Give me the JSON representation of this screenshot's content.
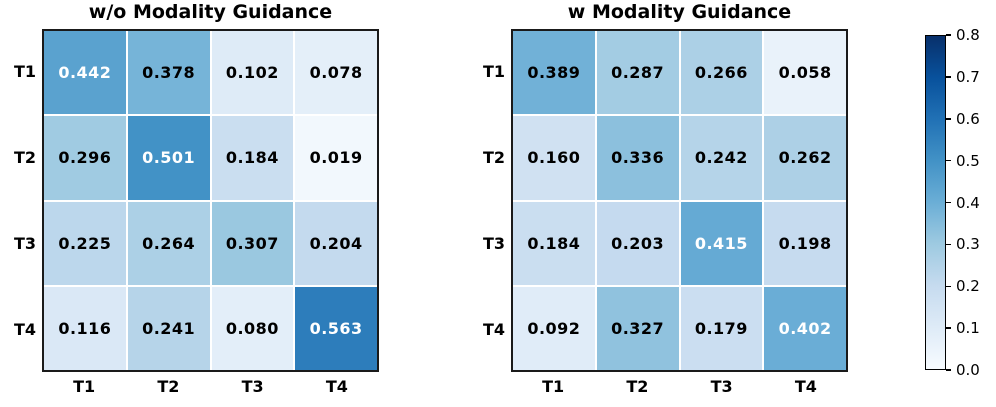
{
  "figure": {
    "background": "#ffffff",
    "border_color": "#1a1a1a",
    "grid_line_color": "#ffffff"
  },
  "chart_data": [
    {
      "type": "heatmap",
      "title": "w/o Modality Guidance",
      "rows": [
        "T1",
        "T2",
        "T3",
        "T4"
      ],
      "cols": [
        "T1",
        "T2",
        "T3",
        "T4"
      ],
      "values": [
        [
          0.442,
          0.378,
          0.102,
          0.078
        ],
        [
          0.296,
          0.501,
          0.184,
          0.019
        ],
        [
          0.225,
          0.264,
          0.307,
          0.204
        ],
        [
          0.116,
          0.241,
          0.08,
          0.563
        ]
      ],
      "colormap": "Blues",
      "vmin": 0.0,
      "vmax": 0.8,
      "value_decimals": 3,
      "annotation_color_high": "#ffffff",
      "annotation_color_low": "#000000"
    },
    {
      "type": "heatmap",
      "title": "w Modality Guidance",
      "rows": [
        "T1",
        "T2",
        "T3",
        "T4"
      ],
      "cols": [
        "T1",
        "T2",
        "T3",
        "T4"
      ],
      "values": [
        [
          0.389,
          0.287,
          0.266,
          0.058
        ],
        [
          0.16,
          0.336,
          0.242,
          0.262
        ],
        [
          0.184,
          0.203,
          0.415,
          0.198
        ],
        [
          0.092,
          0.327,
          0.179,
          0.402
        ]
      ],
      "colormap": "Blues",
      "vmin": 0.0,
      "vmax": 0.8,
      "value_decimals": 3,
      "annotation_color_high": "#ffffff",
      "annotation_color_low": "#000000"
    }
  ],
  "colorbar": {
    "vmin": 0.0,
    "vmax": 0.8,
    "tick_values": [
      0.0,
      0.1,
      0.2,
      0.3,
      0.4,
      0.5,
      0.6,
      0.7,
      0.8
    ],
    "tick_decimals": 1,
    "colormap_stops": [
      [
        0.0,
        "#f7fbff"
      ],
      [
        0.125,
        "#deebf7"
      ],
      [
        0.25,
        "#c6dbef"
      ],
      [
        0.375,
        "#9ecae1"
      ],
      [
        0.5,
        "#6baed6"
      ],
      [
        0.625,
        "#4292c6"
      ],
      [
        0.75,
        "#2171b5"
      ],
      [
        0.875,
        "#08519c"
      ],
      [
        1.0,
        "#08306b"
      ]
    ]
  }
}
